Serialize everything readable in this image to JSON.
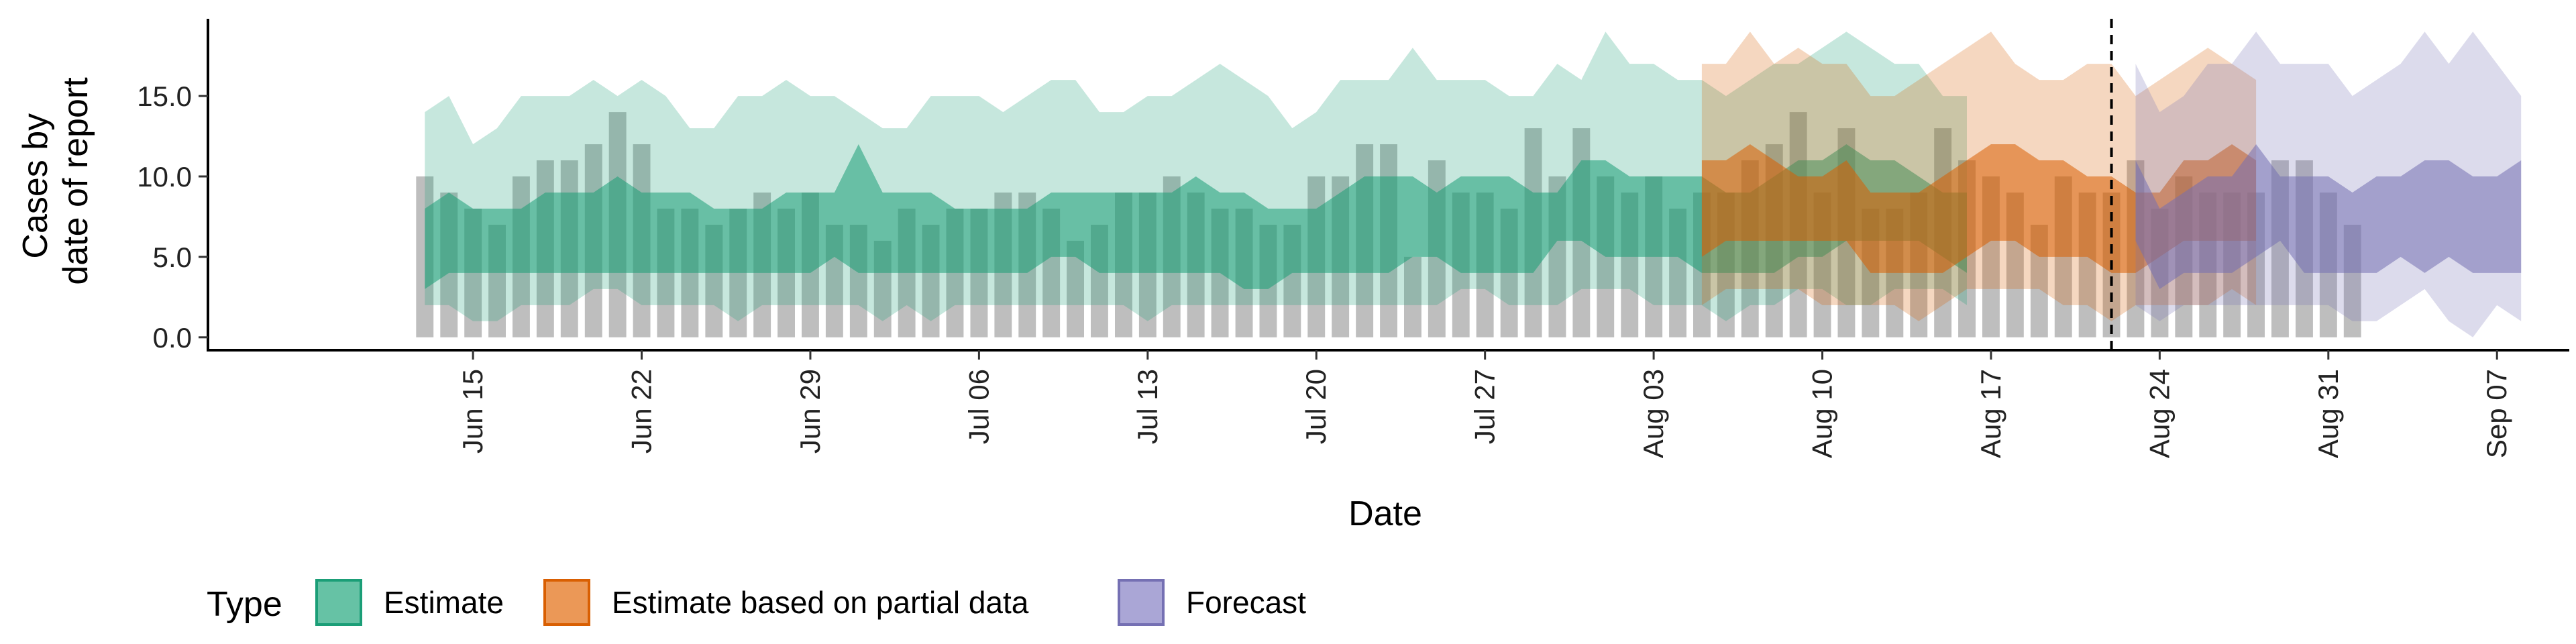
{
  "chart_data": {
    "type": "area",
    "xlabel": "Date",
    "ylabel_lines": [
      "Cases by",
      "date of report"
    ],
    "ylim": [
      -0.8,
      19.8
    ],
    "y_ticks": [
      {
        "value": 0,
        "label": "0.0"
      },
      {
        "value": 5,
        "label": "5.0"
      },
      {
        "value": 10,
        "label": "10.0"
      },
      {
        "value": 15,
        "label": "15.0"
      }
    ],
    "x_range": [
      "2020-06-04",
      "2020-09-10"
    ],
    "x_ticks": [
      {
        "date": "2020-06-15",
        "label": "Jun 15"
      },
      {
        "date": "2020-06-22",
        "label": "Jun 22"
      },
      {
        "date": "2020-06-29",
        "label": "Jun 29"
      },
      {
        "date": "2020-07-06",
        "label": "Jul 06"
      },
      {
        "date": "2020-07-13",
        "label": "Jul 13"
      },
      {
        "date": "2020-07-20",
        "label": "Jul 20"
      },
      {
        "date": "2020-07-27",
        "label": "Jul 27"
      },
      {
        "date": "2020-08-03",
        "label": "Aug 03"
      },
      {
        "date": "2020-08-10",
        "label": "Aug 10"
      },
      {
        "date": "2020-08-17",
        "label": "Aug 17"
      },
      {
        "date": "2020-08-24",
        "label": "Aug 24"
      },
      {
        "date": "2020-08-31",
        "label": "Aug 31"
      },
      {
        "date": "2020-09-07",
        "label": "Sep 07"
      }
    ],
    "vline_date": "2020-08-22",
    "bars": {
      "start_date": "2020-06-13",
      "color": "#b3b3b3",
      "values": [
        10,
        9,
        8,
        7,
        10,
        11,
        11,
        12,
        14,
        12,
        8,
        8,
        7,
        8,
        9,
        8,
        9,
        7,
        7,
        6,
        8,
        7,
        8,
        8,
        9,
        9,
        8,
        6,
        7,
        9,
        9,
        10,
        9,
        8,
        8,
        7,
        7,
        10,
        10,
        12,
        12,
        5,
        11,
        9,
        9,
        8,
        13,
        10,
        13,
        10,
        9,
        10,
        8,
        9,
        9,
        11,
        12,
        14,
        9,
        13,
        8,
        8,
        9,
        13,
        11,
        10,
        9,
        7,
        10,
        9,
        9,
        11,
        8,
        10,
        9,
        9,
        9,
        11,
        11,
        9,
        7
      ]
    },
    "legend": {
      "title": "Type",
      "entries": [
        {
          "label": "Estimate",
          "fill": "#66c2a5",
          "stroke": "#1b9e77"
        },
        {
          "label": "Estimate based on partial data",
          "fill": "#eb9857",
          "stroke": "#d95f02"
        },
        {
          "label": "Forecast",
          "fill": "#aaa6d6",
          "stroke": "#7570b3"
        }
      ]
    },
    "series": [
      {
        "name": "Estimate",
        "start_date": "2020-06-13",
        "color": "#1b9e77",
        "outer_low": [
          2,
          2,
          1,
          1,
          2,
          2,
          2,
          3,
          3,
          2,
          2,
          2,
          2,
          1,
          2,
          2,
          2,
          2,
          2,
          1,
          2,
          1,
          2,
          2,
          2,
          2,
          2,
          2,
          2,
          2,
          1,
          2,
          2,
          2,
          2,
          2,
          2,
          2,
          2,
          2,
          2,
          2,
          2,
          3,
          3,
          2,
          2,
          2,
          3,
          3,
          3,
          2,
          2,
          2,
          1,
          2,
          2,
          3,
          3,
          2,
          2,
          3,
          3,
          3,
          2
        ],
        "inner_low": [
          3,
          4,
          4,
          4,
          4,
          4,
          4,
          4,
          4,
          4,
          4,
          4,
          4,
          4,
          4,
          4,
          4,
          5,
          4,
          4,
          4,
          4,
          4,
          4,
          4,
          4,
          5,
          5,
          4,
          4,
          4,
          4,
          4,
          4,
          3,
          3,
          4,
          4,
          4,
          4,
          4,
          5,
          5,
          4,
          4,
          4,
          4,
          6,
          6,
          5,
          5,
          5,
          5,
          4,
          4,
          4,
          4,
          5,
          5,
          6,
          6,
          6,
          6,
          5,
          4
        ],
        "inner_high": [
          8,
          9,
          8,
          8,
          8,
          9,
          9,
          9,
          10,
          9,
          9,
          9,
          8,
          8,
          8,
          9,
          9,
          9,
          12,
          9,
          9,
          9,
          8,
          8,
          8,
          8,
          9,
          9,
          9,
          9,
          9,
          9,
          10,
          9,
          9,
          8,
          8,
          8,
          9,
          10,
          10,
          10,
          9,
          10,
          10,
          10,
          9,
          9,
          11,
          11,
          10,
          10,
          10,
          10,
          9,
          9,
          10,
          11,
          11,
          12,
          11,
          11,
          10,
          9,
          9
        ],
        "outer_high": [
          14,
          15,
          12,
          13,
          15,
          15,
          15,
          16,
          15,
          16,
          15,
          13,
          13,
          15,
          15,
          16,
          15,
          15,
          14,
          13,
          13,
          15,
          15,
          15,
          14,
          15,
          16,
          16,
          14,
          14,
          15,
          15,
          16,
          17,
          16,
          15,
          13,
          14,
          16,
          16,
          16,
          18,
          16,
          16,
          16,
          15,
          15,
          17,
          16,
          19,
          17,
          17,
          16,
          16,
          15,
          16,
          17,
          17,
          18,
          19,
          18,
          17,
          17,
          15,
          15
        ]
      },
      {
        "name": "Estimate based on partial data",
        "start_date": "2020-08-05",
        "color": "#d95f02",
        "outer_low": [
          2,
          3,
          3,
          3,
          3,
          2,
          2,
          2,
          2,
          1,
          2,
          3,
          3,
          3,
          3,
          2,
          2,
          1,
          2,
          2,
          2,
          2,
          3,
          2
        ],
        "inner_low": [
          5,
          6,
          6,
          6,
          6,
          6,
          6,
          4,
          4,
          4,
          4,
          5,
          6,
          6,
          5,
          5,
          5,
          4,
          4,
          5,
          6,
          6,
          6,
          6
        ],
        "inner_high": [
          11,
          11,
          12,
          11,
          10,
          10,
          11,
          9,
          9,
          9,
          10,
          11,
          12,
          12,
          11,
          11,
          10,
          10,
          9,
          9,
          11,
          11,
          12,
          11
        ],
        "outer_high": [
          17,
          17,
          19,
          17,
          18,
          17,
          17,
          15,
          15,
          16,
          17,
          18,
          19,
          17,
          16,
          16,
          17,
          17,
          15,
          16,
          17,
          18,
          17,
          16
        ]
      },
      {
        "name": "Forecast",
        "start_date": "2020-08-23",
        "color": "#7570b3",
        "outer_low": [
          2,
          1,
          2,
          2,
          2,
          2,
          2,
          2,
          2,
          1,
          1,
          2,
          3,
          1,
          0,
          2,
          1
        ],
        "inner_low": [
          6,
          3,
          4,
          4,
          4,
          5,
          6,
          4,
          4,
          4,
          4,
          5,
          4,
          5,
          4,
          4,
          4
        ],
        "inner_high": [
          11,
          8,
          9,
          10,
          10,
          12,
          10,
          10,
          10,
          9,
          10,
          10,
          11,
          11,
          10,
          10,
          11
        ],
        "outer_high": [
          17,
          14,
          15,
          17,
          17,
          19,
          17,
          17,
          17,
          15,
          16,
          17,
          19,
          17,
          19,
          17,
          15
        ]
      }
    ]
  }
}
